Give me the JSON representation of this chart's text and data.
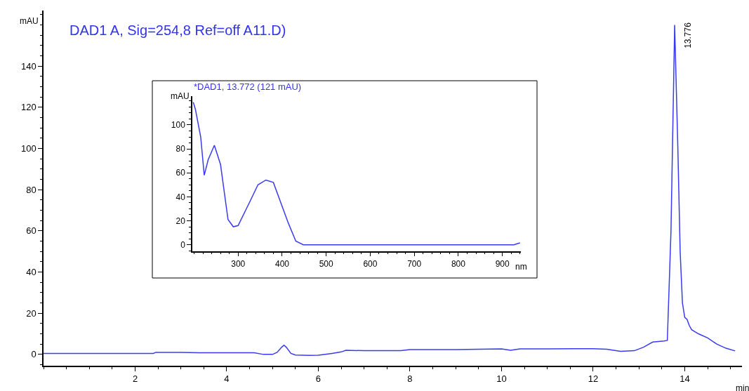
{
  "chart_data": [
    {
      "type": "line",
      "title": "DAD1 A, Sig=254,8 Ref=off A11.D)",
      "xlabel": "min",
      "ylabel": "mAU",
      "xlim": [
        0,
        15.25
      ],
      "ylim": [
        -5.5,
        167
      ],
      "xticks": [
        2,
        4,
        6,
        8,
        10,
        12,
        14
      ],
      "yticks": [
        0,
        20,
        40,
        60,
        80,
        100,
        120,
        140
      ],
      "series": [
        {
          "color": "#3a3af0",
          "x": [
            0,
            1,
            2,
            2.4,
            2.45,
            3,
            3.4,
            4,
            4.6,
            4.8,
            5,
            5.1,
            5.2,
            5.25,
            5.3,
            5.4,
            5.5,
            5.8,
            6,
            6.3,
            6.5,
            6.6,
            7,
            7.8,
            8,
            9,
            10,
            10.2,
            10.4,
            11,
            11.6,
            12,
            12.3,
            12.6,
            12.9,
            13.1,
            13.3,
            13.55,
            13.62,
            13.7,
            13.78,
            13.85,
            13.9,
            13.95,
            14.0,
            14.05,
            14.1,
            14.15,
            14.3,
            14.5,
            14.7,
            14.9,
            15.1
          ],
          "values": [
            0.5,
            0.5,
            0.5,
            0.5,
            1,
            1,
            0.8,
            0.8,
            0.8,
            0,
            0,
            1,
            3.5,
            4.5,
            3.5,
            0.5,
            -0.3,
            -0.5,
            -0.4,
            0.5,
            1.2,
            2,
            1.8,
            1.8,
            2.3,
            2.3,
            2.7,
            2,
            2.7,
            2.7,
            2.8,
            2.8,
            2.5,
            1.5,
            1.8,
            3.5,
            6,
            6.5,
            6.8,
            60,
            160,
            100,
            50,
            25,
            18,
            17,
            14,
            12,
            10,
            8,
            5,
            3,
            1.7
          ]
        }
      ],
      "annotations": [
        {
          "text": "13.776",
          "x": 13.776,
          "y": 160
        }
      ]
    },
    {
      "type": "line",
      "title": "*DAD1, 13.772 (121 mAU)",
      "xlabel": "nm",
      "ylabel": "mAU",
      "xlim": [
        196,
        942
      ],
      "ylim": [
        -5.2,
        124
      ],
      "xticks": [
        300,
        400,
        500,
        600,
        700,
        800,
        900
      ],
      "yticks": [
        0,
        20,
        40,
        60,
        80,
        100
      ],
      "series": [
        {
          "color": "#3a3af0",
          "x": [
            198,
            203,
            215,
            223,
            232,
            246,
            260,
            277,
            289,
            300,
            328,
            345,
            363,
            380,
            397,
            414,
            431,
            448,
            500,
            600,
            700,
            800,
            900,
            926,
            940
          ],
          "values": [
            119,
            113,
            90,
            58,
            71,
            83,
            67,
            21,
            15,
            16,
            37,
            50,
            54,
            52,
            35,
            18,
            3,
            0,
            0,
            0,
            0,
            0,
            0,
            0,
            1.5
          ]
        }
      ]
    }
  ]
}
